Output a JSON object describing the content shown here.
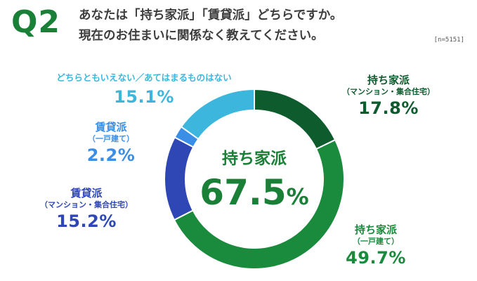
{
  "question": {
    "number": "Q2",
    "line1": "あなたは「持ち家派」「賃貸派」どちらですか。",
    "line2": "現在のお住まいに関係なく教えてください。"
  },
  "sample_note": "[n=5151]",
  "colors": {
    "accent": "#1a7f37",
    "owned_condo": "#0e5c2e",
    "owned_house": "#1a8a3c",
    "rent_condo": "#2f47b5",
    "rent_house": "#3a8ee6",
    "neither": "#3cb6dd"
  },
  "center_label": {
    "name": "持ち家派",
    "value": "67.5",
    "unit": "%"
  },
  "chart_data": {
    "type": "pie",
    "title": "",
    "slices": [
      {
        "name": "持ち家派",
        "sub": "（マンション・集合住宅）",
        "value": 17.8,
        "label": "17.8%",
        "color": "#0e5c2e"
      },
      {
        "name": "持ち家派",
        "sub": "（一戸建て）",
        "value": 49.7,
        "label": "49.7%",
        "color": "#1a8a3c"
      },
      {
        "name": "賃貸派",
        "sub": "（マンション・集合住宅）",
        "value": 15.2,
        "label": "15.2%",
        "color": "#2f47b5"
      },
      {
        "name": "賃貸派",
        "sub": "（一戸建て）",
        "value": 2.2,
        "label": "2.2%",
        "color": "#3a8ee6"
      },
      {
        "name": "どちらともいえない／あてはまるものはない",
        "sub": "",
        "value": 15.1,
        "label": "15.1%",
        "color": "#3cb6dd"
      }
    ]
  }
}
